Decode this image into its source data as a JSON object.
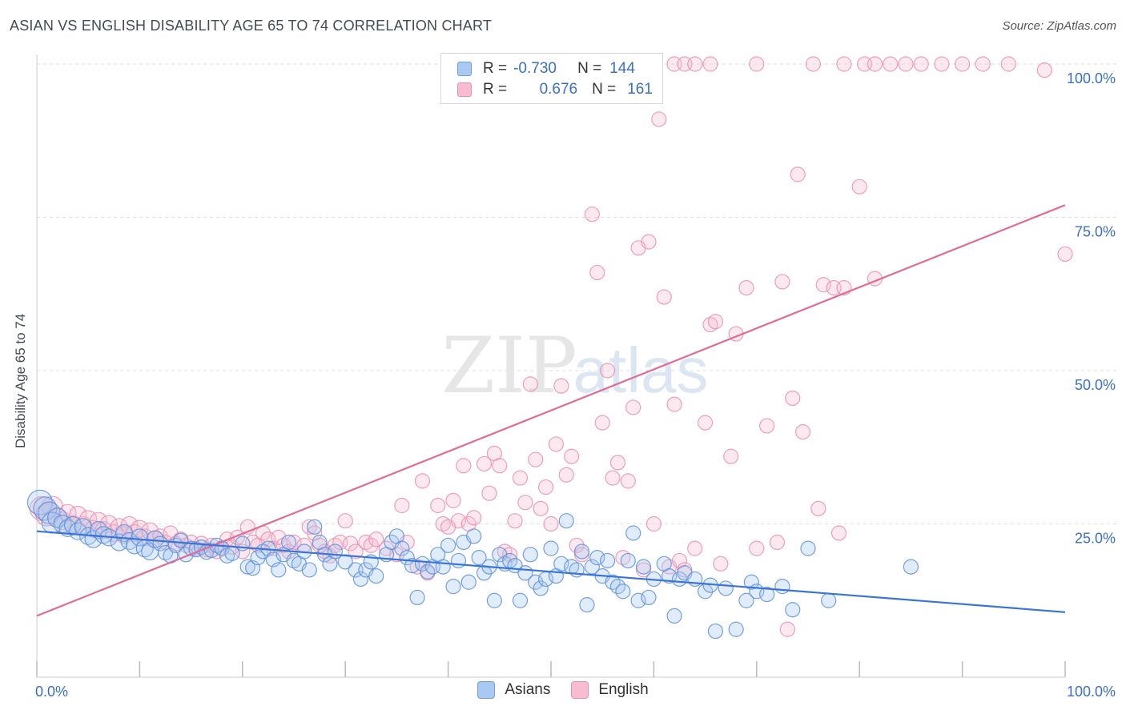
{
  "title": "ASIAN VS ENGLISH DISABILITY AGE 65 TO 74 CORRELATION CHART",
  "source": "Source: ZipAtlas.com",
  "watermark": {
    "zip": "ZIP",
    "atlas": "atlas"
  },
  "legend": {
    "rows": [
      {
        "r_label": "R =",
        "r_value": "-0.730",
        "n_label": "N =",
        "n_value": "144",
        "fill": "#a9c8f2",
        "stroke": "#6f9ee0"
      },
      {
        "r_label": "R =",
        "r_value": "0.676",
        "n_label": "N =",
        "n_value": "161",
        "fill": "#f7bcd0",
        "stroke": "#e990b0"
      }
    ]
  },
  "colors": {
    "asians": "#5b8fdb",
    "english": "#e87aa0",
    "asians_line": "#3a74d6",
    "english_line": "#e06b96",
    "tick_label": "#3a6fc4"
  },
  "chart_data": {
    "type": "scatter",
    "title": "ASIAN VS ENGLISH DISABILITY AGE 65 TO 74 CORRELATION CHART",
    "xlabel": "",
    "ylabel": "Disability Age 65 to 74",
    "xlim": [
      0,
      100
    ],
    "ylim": [
      0,
      102
    ],
    "x_tick_labels": [
      "0.0%",
      "100.0%"
    ],
    "y_tick_labels": [
      "25.0%",
      "50.0%",
      "75.0%",
      "100.0%"
    ],
    "y_ticks": [
      25,
      50,
      75,
      100
    ],
    "grid": true,
    "legend_position": "bottom-center",
    "series": [
      {
        "name": "Asians",
        "trend": {
          "x": [
            0,
            100
          ],
          "y": [
            23.8,
            10.6
          ]
        },
        "points": [
          [
            0.3,
            28.5
          ],
          [
            0.8,
            27.5
          ],
          [
            1.2,
            26.8
          ],
          [
            1.5,
            25.2
          ],
          [
            2.0,
            26.0
          ],
          [
            2.5,
            25.0
          ],
          [
            3.0,
            24.3
          ],
          [
            3.5,
            24.8
          ],
          [
            4.0,
            23.8
          ],
          [
            4.5,
            24.5
          ],
          [
            5.0,
            23.0
          ],
          [
            5.5,
            22.5
          ],
          [
            6.0,
            24.0
          ],
          [
            6.5,
            23.2
          ],
          [
            7.0,
            22.8
          ],
          [
            8.0,
            22.0
          ],
          [
            8.5,
            23.5
          ],
          [
            9.0,
            22.2
          ],
          [
            9.5,
            21.5
          ],
          [
            10.0,
            22.8
          ],
          [
            10.5,
            21.0
          ],
          [
            11.0,
            20.5
          ],
          [
            11.5,
            22.5
          ],
          [
            12.0,
            21.8
          ],
          [
            12.5,
            20.3
          ],
          [
            13.0,
            19.8
          ],
          [
            13.5,
            21.5
          ],
          [
            14.0,
            22.3
          ],
          [
            14.5,
            20.0
          ],
          [
            15.0,
            21.0
          ],
          [
            15.5,
            20.8
          ],
          [
            16.0,
            21.2
          ],
          [
            16.5,
            20.4
          ],
          [
            17.0,
            20.7
          ],
          [
            17.5,
            21.5
          ],
          [
            18.0,
            21.0
          ],
          [
            18.5,
            19.8
          ],
          [
            19.0,
            20.2
          ],
          [
            20.0,
            21.8
          ],
          [
            20.5,
            18.0
          ],
          [
            21.0,
            17.8
          ],
          [
            21.5,
            19.5
          ],
          [
            22.0,
            20.5
          ],
          [
            22.5,
            21.0
          ],
          [
            23.0,
            19.2
          ],
          [
            23.5,
            17.5
          ],
          [
            24.0,
            20.0
          ],
          [
            24.5,
            22.0
          ],
          [
            25.0,
            19.0
          ],
          [
            25.5,
            18.5
          ],
          [
            26.0,
            20.5
          ],
          [
            26.5,
            17.5
          ],
          [
            27.0,
            24.5
          ],
          [
            27.5,
            22.0
          ],
          [
            28.0,
            20.0
          ],
          [
            28.5,
            18.5
          ],
          [
            29.0,
            20.5
          ],
          [
            30.0,
            18.8
          ],
          [
            31.0,
            17.5
          ],
          [
            31.5,
            16.0
          ],
          [
            32.0,
            17.5
          ],
          [
            32.5,
            18.8
          ],
          [
            33.0,
            16.5
          ],
          [
            34.0,
            20.0
          ],
          [
            34.5,
            22.0
          ],
          [
            35.0,
            23.0
          ],
          [
            35.5,
            21.0
          ],
          [
            36.0,
            19.5
          ],
          [
            36.5,
            18.2
          ],
          [
            37.0,
            13.0
          ],
          [
            37.5,
            18.5
          ],
          [
            38.0,
            17.2
          ],
          [
            38.5,
            18.0
          ],
          [
            39.0,
            20.0
          ],
          [
            39.5,
            18.0
          ],
          [
            40.0,
            21.5
          ],
          [
            40.5,
            14.8
          ],
          [
            41.0,
            19.0
          ],
          [
            41.5,
            22.0
          ],
          [
            42.0,
            15.5
          ],
          [
            42.5,
            23.0
          ],
          [
            43.0,
            19.5
          ],
          [
            43.5,
            17.0
          ],
          [
            44.0,
            18.0
          ],
          [
            44.5,
            12.5
          ],
          [
            45.0,
            20.0
          ],
          [
            45.5,
            18.5
          ],
          [
            46.0,
            19.0
          ],
          [
            46.5,
            18.2
          ],
          [
            47.0,
            12.5
          ],
          [
            47.5,
            17.0
          ],
          [
            48.0,
            20.0
          ],
          [
            48.5,
            15.5
          ],
          [
            49.0,
            14.5
          ],
          [
            49.5,
            16.0
          ],
          [
            50.0,
            21.0
          ],
          [
            50.5,
            16.5
          ],
          [
            51.0,
            18.5
          ],
          [
            51.5,
            25.5
          ],
          [
            52.0,
            18.0
          ],
          [
            52.5,
            17.5
          ],
          [
            53.0,
            20.5
          ],
          [
            53.5,
            11.8
          ],
          [
            54.0,
            18.0
          ],
          [
            54.5,
            19.5
          ],
          [
            55.0,
            16.5
          ],
          [
            55.5,
            19.0
          ],
          [
            56.0,
            15.5
          ],
          [
            56.5,
            14.8
          ],
          [
            57.0,
            14.0
          ],
          [
            57.5,
            19.0
          ],
          [
            58.0,
            23.5
          ],
          [
            58.5,
            12.5
          ],
          [
            59.0,
            18.0
          ],
          [
            59.5,
            13.0
          ],
          [
            60.0,
            16.0
          ],
          [
            61.0,
            18.5
          ],
          [
            61.5,
            16.5
          ],
          [
            62.0,
            10.0
          ],
          [
            62.5,
            16.0
          ],
          [
            63.0,
            17.0
          ],
          [
            64.0,
            16.0
          ],
          [
            65.0,
            14.0
          ],
          [
            65.5,
            15.0
          ],
          [
            66.0,
            7.5
          ],
          [
            67.0,
            14.5
          ],
          [
            68.0,
            7.8
          ],
          [
            69.0,
            12.5
          ],
          [
            69.5,
            15.5
          ],
          [
            70.0,
            14.0
          ],
          [
            71.0,
            13.5
          ],
          [
            72.5,
            14.8
          ],
          [
            73.5,
            11.0
          ],
          [
            75.0,
            21.0
          ],
          [
            77.0,
            12.5
          ],
          [
            85.0,
            18.0
          ]
        ]
      },
      {
        "name": "English",
        "trend": {
          "x": [
            0,
            100
          ],
          "y": [
            10.0,
            77.0
          ]
        },
        "points": [
          [
            0.5,
            27.5
          ],
          [
            1.0,
            26.5
          ],
          [
            1.5,
            27.8
          ],
          [
            2.0,
            26.0
          ],
          [
            2.5,
            25.5
          ],
          [
            3.0,
            26.8
          ],
          [
            3.5,
            25.0
          ],
          [
            4.0,
            26.5
          ],
          [
            4.5,
            24.8
          ],
          [
            5.0,
            25.8
          ],
          [
            5.5,
            24.2
          ],
          [
            6.0,
            25.5
          ],
          [
            6.5,
            24.0
          ],
          [
            7.0,
            25.0
          ],
          [
            7.5,
            23.5
          ],
          [
            8.0,
            24.5
          ],
          [
            8.5,
            23.2
          ],
          [
            9.0,
            24.8
          ],
          [
            9.5,
            23.5
          ],
          [
            10.0,
            24.2
          ],
          [
            10.5,
            22.8
          ],
          [
            11.0,
            23.8
          ],
          [
            11.5,
            22.5
          ],
          [
            12.0,
            23.0
          ],
          [
            12.5,
            22.0
          ],
          [
            13.0,
            23.5
          ],
          [
            13.5,
            21.8
          ],
          [
            14.0,
            22.5
          ],
          [
            14.5,
            21.5
          ],
          [
            15.0,
            22.0
          ],
          [
            15.5,
            21.0
          ],
          [
            16.0,
            21.8
          ],
          [
            16.5,
            20.8
          ],
          [
            17.0,
            21.5
          ],
          [
            17.5,
            20.5
          ],
          [
            18.0,
            21.0
          ],
          [
            18.5,
            22.5
          ],
          [
            19.0,
            21.2
          ],
          [
            19.5,
            22.8
          ],
          [
            20.0,
            20.5
          ],
          [
            20.5,
            24.5
          ],
          [
            21.0,
            22.0
          ],
          [
            21.5,
            21.5
          ],
          [
            22.0,
            23.5
          ],
          [
            22.5,
            22.5
          ],
          [
            23.0,
            21.0
          ],
          [
            23.5,
            22.8
          ],
          [
            24.0,
            21.5
          ],
          [
            24.5,
            20.5
          ],
          [
            25.0,
            22.0
          ],
          [
            26.0,
            21.5
          ],
          [
            26.5,
            24.5
          ],
          [
            27.0,
            23.5
          ],
          [
            27.5,
            21.5
          ],
          [
            28.0,
            20.5
          ],
          [
            28.5,
            19.8
          ],
          [
            29.0,
            21.5
          ],
          [
            29.5,
            22.0
          ],
          [
            30.0,
            25.5
          ],
          [
            30.5,
            21.8
          ],
          [
            31.0,
            20.5
          ],
          [
            32.0,
            22.0
          ],
          [
            32.5,
            21.5
          ],
          [
            33.0,
            22.5
          ],
          [
            34.0,
            21.0
          ],
          [
            35.0,
            20.0
          ],
          [
            35.5,
            28.0
          ],
          [
            36.0,
            22.0
          ],
          [
            37.0,
            18.0
          ],
          [
            37.5,
            32.0
          ],
          [
            38.0,
            17.0
          ],
          [
            39.0,
            28.0
          ],
          [
            39.5,
            25.0
          ],
          [
            40.0,
            24.5
          ],
          [
            40.5,
            28.8
          ],
          [
            41.0,
            25.5
          ],
          [
            41.5,
            34.5
          ],
          [
            42.0,
            25.0
          ],
          [
            42.5,
            26.0
          ],
          [
            43.5,
            34.8
          ],
          [
            44.0,
            30.0
          ],
          [
            44.5,
            36.5
          ],
          [
            45.0,
            34.5
          ],
          [
            45.5,
            20.5
          ],
          [
            46.0,
            20.0
          ],
          [
            46.5,
            25.5
          ],
          [
            47.0,
            32.5
          ],
          [
            47.5,
            28.5
          ],
          [
            48.0,
            47.8
          ],
          [
            48.5,
            35.5
          ],
          [
            49.0,
            27.5
          ],
          [
            49.5,
            31.0
          ],
          [
            50.0,
            25.0
          ],
          [
            50.5,
            38.0
          ],
          [
            51.0,
            47.5
          ],
          [
            51.5,
            33.0
          ],
          [
            52.0,
            36.0
          ],
          [
            52.5,
            21.5
          ],
          [
            53.0,
            20.0
          ],
          [
            54.0,
            75.5
          ],
          [
            54.5,
            66.0
          ],
          [
            55.0,
            41.5
          ],
          [
            55.5,
            50.0
          ],
          [
            56.0,
            32.5
          ],
          [
            56.5,
            35.0
          ],
          [
            57.0,
            19.5
          ],
          [
            57.5,
            32.0
          ],
          [
            58.0,
            44.0
          ],
          [
            58.5,
            70.0
          ],
          [
            59.0,
            17.5
          ],
          [
            59.5,
            71.0
          ],
          [
            60.0,
            25.0
          ],
          [
            61.0,
            62.0
          ],
          [
            61.5,
            18.0
          ],
          [
            62.0,
            44.5
          ],
          [
            62.5,
            19.0
          ],
          [
            63.0,
            17.5
          ],
          [
            64.0,
            21.0
          ],
          [
            65.0,
            41.5
          ],
          [
            65.5,
            57.5
          ],
          [
            66.0,
            58.0
          ],
          [
            66.5,
            18.5
          ],
          [
            67.5,
            36.0
          ],
          [
            68.0,
            56.0
          ],
          [
            69.0,
            63.5
          ],
          [
            70.0,
            21.0
          ],
          [
            71.0,
            41.0
          ],
          [
            72.0,
            22.0
          ],
          [
            72.5,
            64.5
          ],
          [
            73.5,
            45.5
          ],
          [
            74.0,
            82.0
          ],
          [
            74.5,
            40.0
          ],
          [
            76.0,
            27.5
          ],
          [
            76.5,
            64.0
          ],
          [
            77.5,
            63.5
          ],
          [
            78.0,
            23.5
          ],
          [
            78.5,
            63.5
          ],
          [
            80.0,
            80.0
          ],
          [
            81.5,
            65.0
          ],
          [
            73.0,
            7.8
          ],
          [
            75.5,
            100.0
          ],
          [
            78.5,
            100.0
          ],
          [
            80.5,
            100.0
          ],
          [
            81.5,
            100.0
          ],
          [
            83.0,
            100.0
          ],
          [
            84.5,
            100.0
          ],
          [
            86.0,
            100.0
          ],
          [
            88.0,
            100.0
          ],
          [
            90.0,
            100.0
          ],
          [
            92.0,
            100.0
          ],
          [
            94.5,
            100.0
          ],
          [
            98.0,
            99.0
          ],
          [
            100.0,
            69.0
          ],
          [
            60.5,
            91.0
          ],
          [
            62.0,
            100.0
          ],
          [
            63.0,
            100.0
          ],
          [
            64.0,
            100.0
          ],
          [
            65.5,
            100.0
          ],
          [
            70.0,
            100.0
          ]
        ]
      }
    ]
  }
}
